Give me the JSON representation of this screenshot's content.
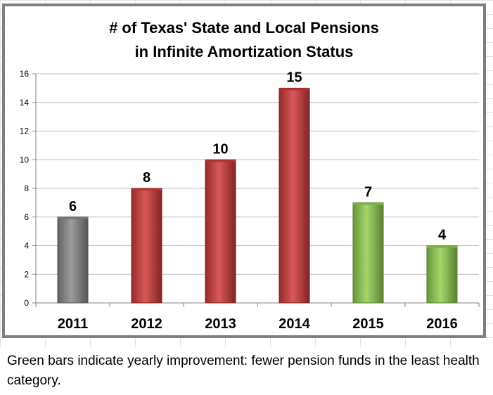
{
  "chart_data": {
    "type": "bar",
    "title_lines": [
      "# of Texas' State and Local Pensions",
      "in Infinite Amortization Status"
    ],
    "categories": [
      "2011",
      "2012",
      "2013",
      "2014",
      "2015",
      "2016"
    ],
    "values": [
      6,
      8,
      10,
      15,
      7,
      4
    ],
    "data_labels": [
      "6",
      "8",
      "10",
      "15",
      "7",
      "4"
    ],
    "bar_colors": [
      "#8a8a8a",
      "#d23a3a",
      "#d23a3a",
      "#d23a3a",
      "#92d050",
      "#92d050"
    ],
    "ylim": [
      0,
      16
    ],
    "y_ticks": [
      0,
      2,
      4,
      6,
      8,
      10,
      12,
      14,
      16
    ],
    "y_tick_labels": [
      "0",
      "2",
      "4",
      "6",
      "8",
      "10",
      "12",
      "14",
      "16"
    ],
    "grid": true,
    "legend": "none"
  },
  "caption": "Green bars indicate yearly improvement: fewer pension funds in the least health category."
}
